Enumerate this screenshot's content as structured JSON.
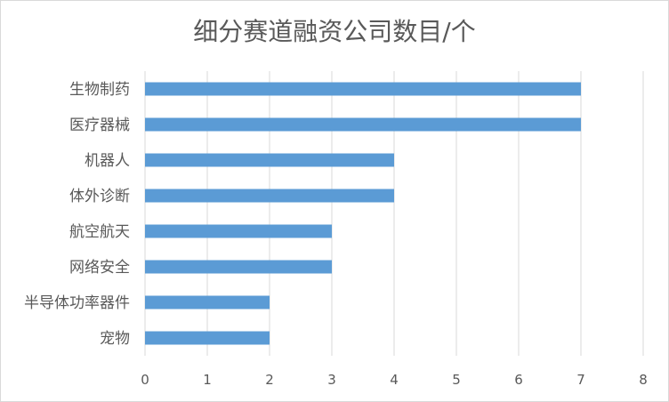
{
  "chart_data": {
    "type": "bar",
    "orientation": "horizontal",
    "title": "细分赛道融资公司数目/个",
    "categories": [
      "生物制药",
      "医疗器械",
      "机器人",
      "体外诊断",
      "航空航天",
      "网络安全",
      "半导体功率器件",
      "宠物"
    ],
    "values": [
      7,
      7,
      4,
      4,
      3,
      3,
      2,
      2
    ],
    "xlim": [
      0,
      8
    ],
    "xticks": [
      "0",
      "1",
      "2",
      "3",
      "4",
      "5",
      "6",
      "7",
      "8"
    ],
    "grid": "vertical",
    "legend": "none",
    "bar_color": "#5b9bd5",
    "grid_color": "#d9d9d9"
  }
}
